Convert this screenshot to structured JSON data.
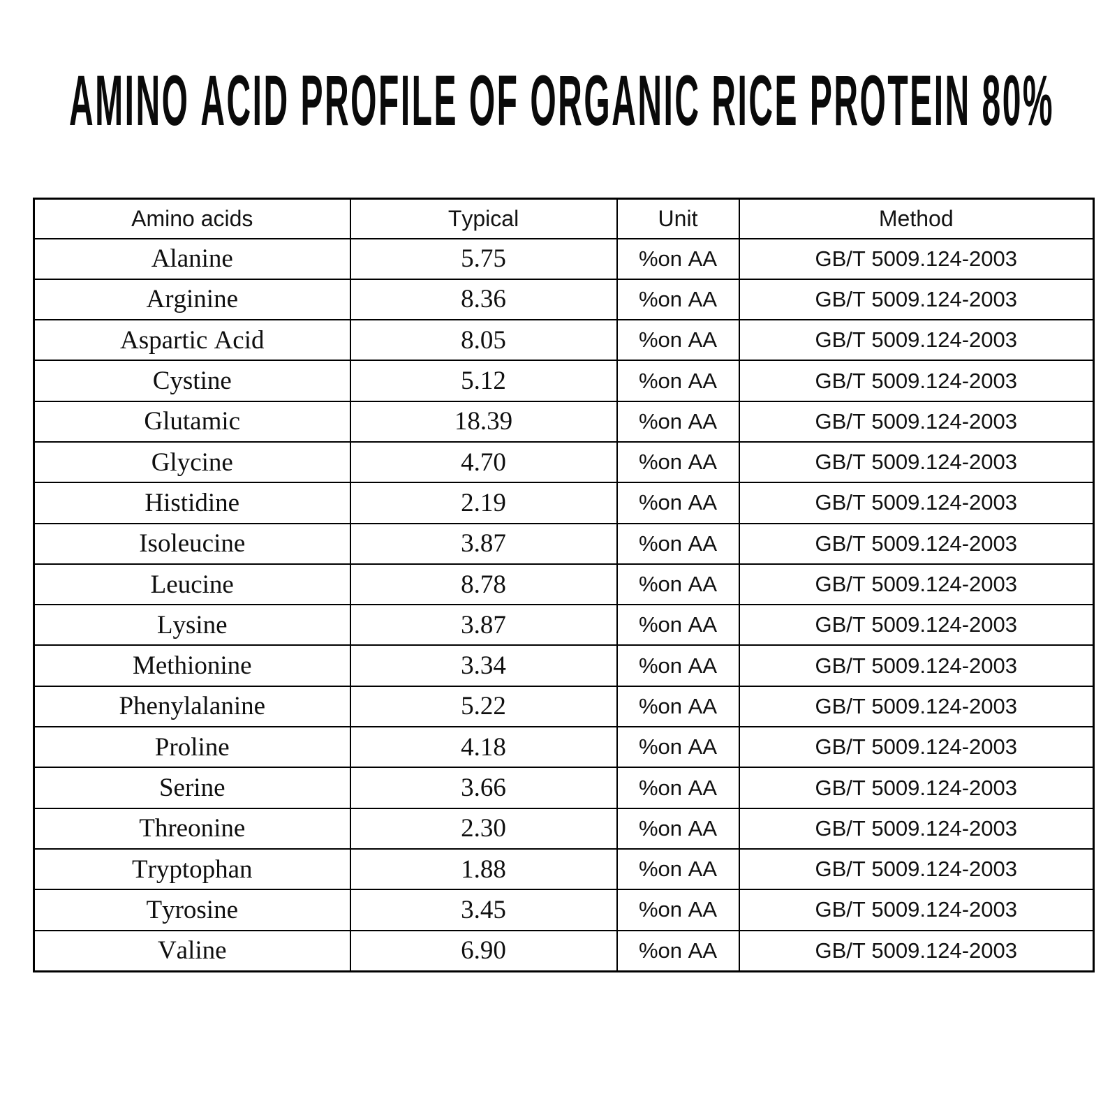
{
  "title": "AMINO ACID PROFILE OF ORGANIC RICE PROTEIN 80%",
  "colors": {
    "background": "#ffffff",
    "text": "#0f0f0f",
    "border": "#000000"
  },
  "table": {
    "headers": [
      "Amino acids",
      "Typical",
      "Unit",
      "Method"
    ],
    "rows": [
      {
        "amino_acid": "Alanine",
        "typical": "5.75",
        "unit": "%on AA",
        "method": "GB/T 5009.124-2003"
      },
      {
        "amino_acid": "Arginine",
        "typical": "8.36",
        "unit": "%on AA",
        "method": "GB/T 5009.124-2003"
      },
      {
        "amino_acid": "Aspartic Acid",
        "typical": "8.05",
        "unit": "%on AA",
        "method": "GB/T 5009.124-2003"
      },
      {
        "amino_acid": "Cystine",
        "typical": "5.12",
        "unit": "%on AA",
        "method": "GB/T 5009.124-2003"
      },
      {
        "amino_acid": "Glutamic",
        "typical": "18.39",
        "unit": "%on AA",
        "method": "GB/T 5009.124-2003"
      },
      {
        "amino_acid": "Glycine",
        "typical": "4.70",
        "unit": "%on AA",
        "method": "GB/T 5009.124-2003"
      },
      {
        "amino_acid": "Histidine",
        "typical": "2.19",
        "unit": "%on AA",
        "method": "GB/T 5009.124-2003"
      },
      {
        "amino_acid": "Isoleucine",
        "typical": "3.87",
        "unit": "%on AA",
        "method": "GB/T 5009.124-2003"
      },
      {
        "amino_acid": "Leucine",
        "typical": "8.78",
        "unit": "%on AA",
        "method": "GB/T 5009.124-2003"
      },
      {
        "amino_acid": "Lysine",
        "typical": "3.87",
        "unit": "%on AA",
        "method": "GB/T 5009.124-2003"
      },
      {
        "amino_acid": "Methionine",
        "typical": "3.34",
        "unit": "%on AA",
        "method": "GB/T 5009.124-2003"
      },
      {
        "amino_acid": "Phenylalanine",
        "typical": "5.22",
        "unit": "%on AA",
        "method": "GB/T 5009.124-2003"
      },
      {
        "amino_acid": "Proline",
        "typical": "4.18",
        "unit": "%on AA",
        "method": "GB/T 5009.124-2003"
      },
      {
        "amino_acid": "Serine",
        "typical": "3.66",
        "unit": "%on AA",
        "method": "GB/T 5009.124-2003"
      },
      {
        "amino_acid": "Threonine",
        "typical": "2.30",
        "unit": "%on AA",
        "method": "GB/T 5009.124-2003"
      },
      {
        "amino_acid": "Tryptophan",
        "typical": "1.88",
        "unit": "%on AA",
        "method": "GB/T 5009.124-2003"
      },
      {
        "amino_acid": "Tyrosine",
        "typical": "3.45",
        "unit": "%on AA",
        "method": "GB/T 5009.124-2003"
      },
      {
        "amino_acid": "Valine",
        "typical": "6.90",
        "unit": "%on AA",
        "method": "GB/T 5009.124-2003"
      }
    ]
  }
}
